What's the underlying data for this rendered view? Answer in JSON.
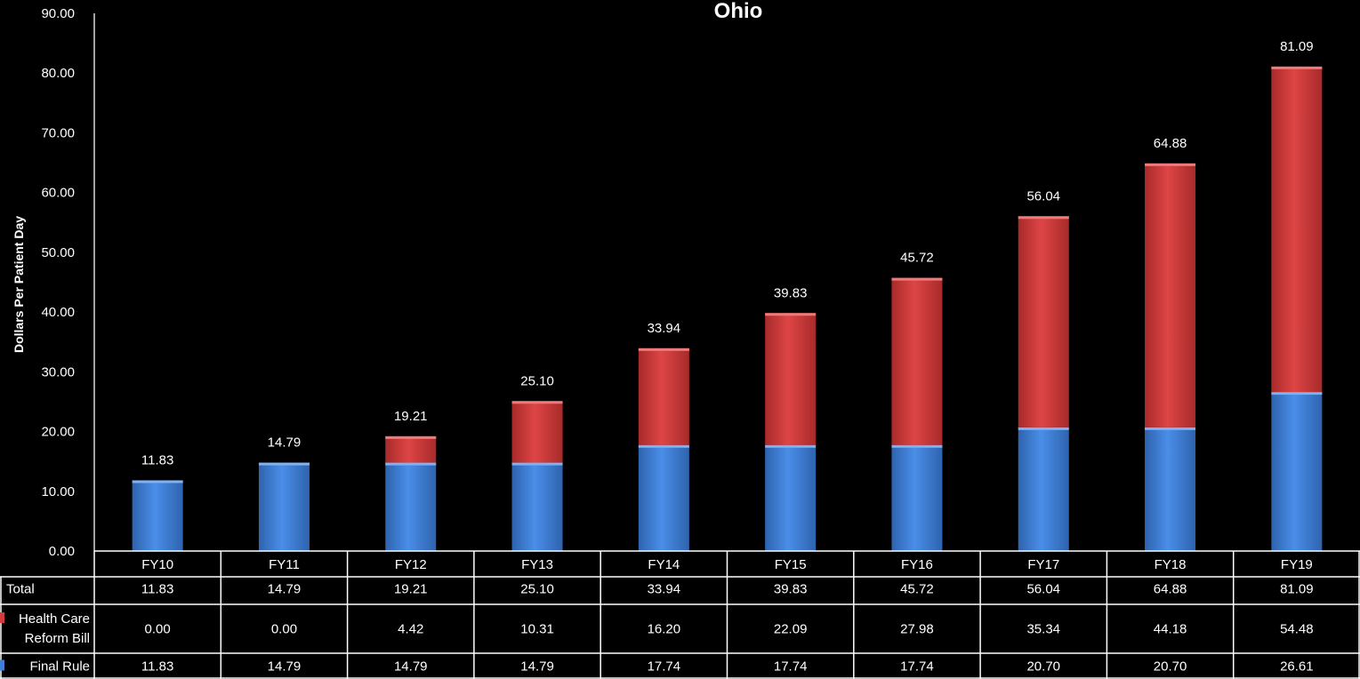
{
  "chart_data": {
    "type": "bar",
    "stacked": true,
    "title": "Ohio",
    "xlabel": "",
    "ylabel": "Dollars Per Patient Day",
    "ylim": [
      0,
      90
    ],
    "yticks": [
      "0.00",
      "10.00",
      "20.00",
      "30.00",
      "40.00",
      "50.00",
      "60.00",
      "70.00",
      "80.00",
      "90.00"
    ],
    "categories": [
      "FY10",
      "FY11",
      "FY12",
      "FY13",
      "FY14",
      "FY15",
      "FY16",
      "FY17",
      "FY18",
      "FY19"
    ],
    "series": [
      {
        "name": "Final Rule",
        "color": "#3F7FD6",
        "values": [
          11.83,
          14.79,
          14.79,
          14.79,
          17.74,
          17.74,
          17.74,
          20.7,
          20.7,
          26.61
        ],
        "labels": [
          "11.83",
          "14.79",
          "14.79",
          "14.79",
          "17.74",
          "17.74",
          "17.74",
          "20.70",
          "20.70",
          "26.61"
        ]
      },
      {
        "name": "Health Care Reform Bill",
        "color": "#D23C3C",
        "values": [
          0.0,
          0.0,
          4.42,
          10.31,
          16.2,
          22.09,
          27.98,
          35.34,
          44.18,
          54.48
        ],
        "labels": [
          "0.00",
          "0.00",
          "4.42",
          "10.31",
          "16.20",
          "22.09",
          "27.98",
          "35.34",
          "44.18",
          "54.48"
        ]
      }
    ],
    "totals": {
      "name": "Total",
      "values": [
        11.83,
        14.79,
        19.21,
        25.1,
        33.94,
        39.83,
        45.72,
        56.04,
        64.88,
        81.09
      ],
      "labels": [
        "11.83",
        "14.79",
        "19.21",
        "25.10",
        "33.94",
        "39.83",
        "45.72",
        "56.04",
        "64.88",
        "81.09"
      ]
    },
    "grid": false,
    "legend": "data-table-below"
  }
}
